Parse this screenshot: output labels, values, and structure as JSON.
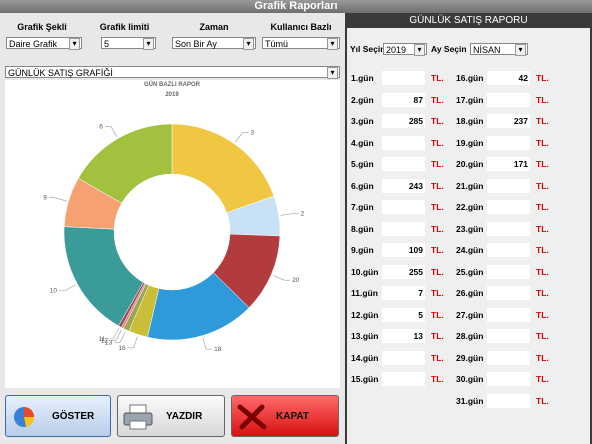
{
  "window_title": "Grafik Raporları",
  "filters": [
    {
      "label": "Grafik Şekli",
      "value": "Daire Grafik"
    },
    {
      "label": "Grafik limiti",
      "value": "5"
    },
    {
      "label": "Zaman",
      "value": "Son Bir Ay"
    },
    {
      "label": "Kullanıcı Bazlı",
      "value": "Tümü"
    }
  ],
  "chart_selector": "GÜNLÜK SATIŞ GRAFİĞİ",
  "chart_data": {
    "type": "donut",
    "title": "GÜN BAZLI RAPOR",
    "subtitle": "2019",
    "categories": [
      "3",
      "2",
      "20",
      "18",
      "16",
      "13",
      "12",
      "11",
      "10",
      "9",
      "6"
    ],
    "values": [
      285,
      87,
      171,
      237,
      42,
      13,
      5,
      7,
      255,
      109,
      243
    ],
    "colors": [
      "#efc743",
      "#c9e1f5",
      "#b23b3e",
      "#2f9ad9",
      "#c9bd3a",
      "#9aa84a",
      "#e27b95",
      "#a04a58",
      "#3a9b99",
      "#f6a172",
      "#a2c23f"
    ]
  },
  "buttons": [
    "GÖSTER",
    "YAZDIR",
    "KAPAT"
  ],
  "report": {
    "title": "GÜNLÜK SATIŞ RAPORU",
    "year_label": "Yıl Seçin",
    "year": "2019",
    "month_label": "Ay Seçin",
    "month": "NİSAN",
    "currency": "TL.",
    "days": [
      {
        "label": "1.gün",
        "amount": null
      },
      {
        "label": "2.gün",
        "amount": 87
      },
      {
        "label": "3.gün",
        "amount": 285
      },
      {
        "label": "4.gün",
        "amount": null
      },
      {
        "label": "5.gün",
        "amount": null
      },
      {
        "label": "6.gün",
        "amount": 243
      },
      {
        "label": "7.gün",
        "amount": null
      },
      {
        "label": "8.gün",
        "amount": null
      },
      {
        "label": "9.gün",
        "amount": 109
      },
      {
        "label": "10.gün",
        "amount": 255
      },
      {
        "label": "11.gün",
        "amount": 7
      },
      {
        "label": "12.gün",
        "amount": 5
      },
      {
        "label": "13.gün",
        "amount": 13
      },
      {
        "label": "14.gün",
        "amount": null
      },
      {
        "label": "15.gün",
        "amount": null
      },
      {
        "label": "16.gün",
        "amount": 42
      },
      {
        "label": "17.gün",
        "amount": null
      },
      {
        "label": "18.gün",
        "amount": 237
      },
      {
        "label": "19.gün",
        "amount": null
      },
      {
        "label": "20.gün",
        "amount": 171
      },
      {
        "label": "21.gün",
        "amount": null
      },
      {
        "label": "22.gün",
        "amount": null
      },
      {
        "label": "23.gün",
        "amount": null
      },
      {
        "label": "24.gün",
        "amount": null
      },
      {
        "label": "25.gün",
        "amount": null
      },
      {
        "label": "26.gün",
        "amount": null
      },
      {
        "label": "27.gün",
        "amount": null
      },
      {
        "label": "28.gün",
        "amount": null
      },
      {
        "label": "29.gün",
        "amount": null
      },
      {
        "label": "30.gün",
        "amount": null
      },
      {
        "label": "31.gün",
        "amount": null
      }
    ]
  }
}
